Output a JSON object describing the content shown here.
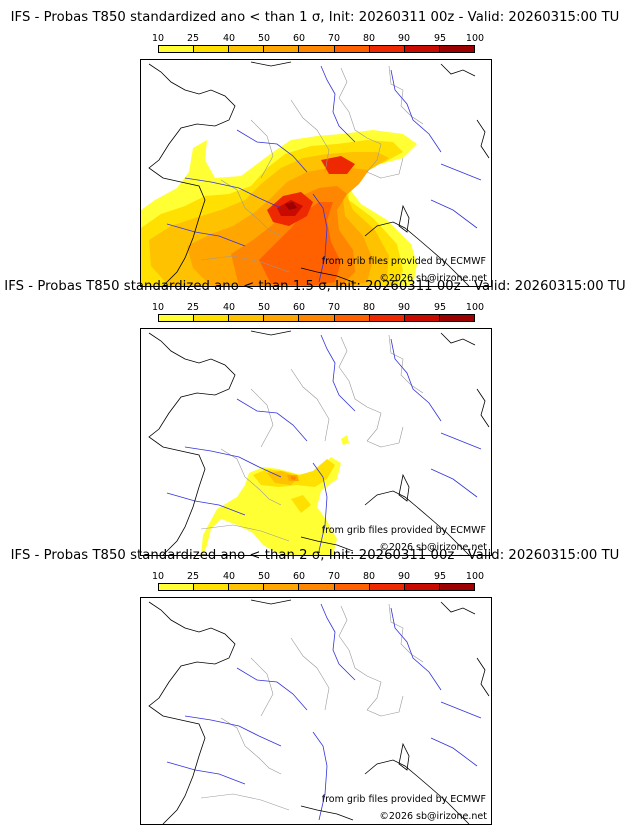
{
  "panels": [
    {
      "title": "IFS - Probas T850  standardized ano < than 1 σ, Init: 20260311 00z - Valid: 20260315:00 TU"
    },
    {
      "title": "IFS - Probas T850  standardized ano < than 1.5 σ, Init: 20260311 00z - Valid: 20260315:00 TU"
    },
    {
      "title": "IFS - Probas T850  standardized ano < than 2 σ, Init: 20260311 00z - Valid: 20260315:00 TU"
    }
  ],
  "legend": {
    "ticks": [
      "10",
      "25",
      "40",
      "50",
      "60",
      "70",
      "80",
      "90",
      "95",
      "100"
    ],
    "colors": [
      "#ffff33",
      "#ffe000",
      "#ffc200",
      "#ffa600",
      "#ff8600",
      "#ff6000",
      "#ee2800",
      "#c80a00",
      "#9c0000",
      "#5c0000"
    ]
  },
  "map_colors": {
    "coast": "#000000",
    "rivers": "#3333dd",
    "borders": "#9a9a9a"
  },
  "credit": "from grib files provided by ECMWF",
  "copyright": "©2026 sb@irizone.net"
}
